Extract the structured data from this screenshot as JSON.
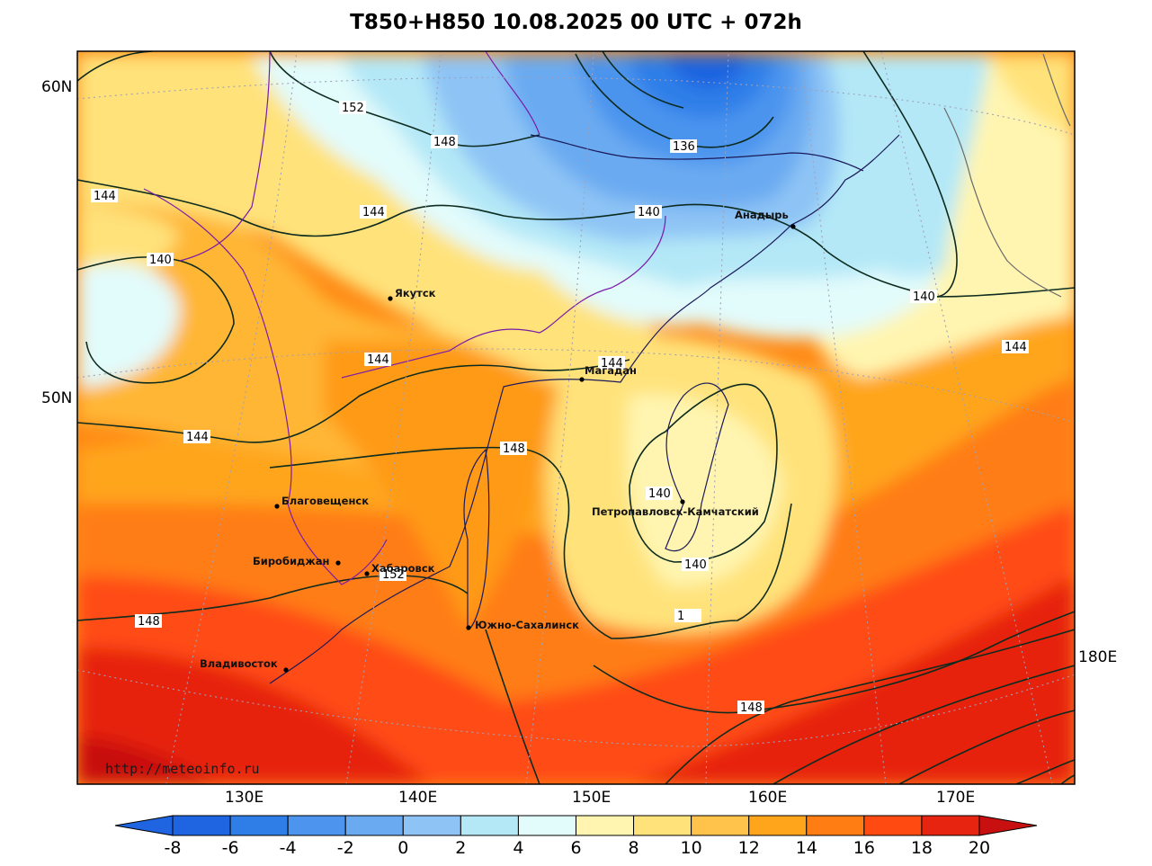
{
  "title": "T850+H850 10.08.2025 00 UTC + 072h",
  "credit": "http://meteoinfo.ru",
  "lat_labels": [
    "60N",
    "50N"
  ],
  "lon_labels": [
    "130E",
    "140E",
    "150E",
    "160E",
    "170E",
    "180E"
  ],
  "cities": [
    {
      "name": "Якутск"
    },
    {
      "name": "Магадан"
    },
    {
      "name": "Анадырь"
    },
    {
      "name": "Благовещенск"
    },
    {
      "name": "Биробиджан"
    },
    {
      "name": "Хабаровск"
    },
    {
      "name": "Владивосток"
    },
    {
      "name": "Южно-Сахалинск"
    },
    {
      "name": "Петропавловск-Камчатский"
    }
  ],
  "contour_labels": [
    "152",
    "148",
    "136",
    "144",
    "140",
    "140",
    "140",
    "144",
    "144",
    "144",
    "148",
    "140",
    "140",
    "144",
    "144",
    "148",
    "148",
    "152",
    "1"
  ],
  "colorbar": {
    "ticks": [
      "-8",
      "-6",
      "-4",
      "-2",
      "0",
      "2",
      "4",
      "6",
      "8",
      "10",
      "12",
      "14",
      "16",
      "18",
      "20"
    ],
    "colors": [
      "#1f64e0",
      "#2f7ee8",
      "#4c94ee",
      "#6aaaf1",
      "#8ec4f5",
      "#b4e8f7",
      "#e2fbfb",
      "#fff5b0",
      "#ffe27a",
      "#ffc24a",
      "#ffa51c",
      "#ff7d12",
      "#ff4b12",
      "#e62410"
    ],
    "low_color": "#1f64e0",
    "high_color": "#c81010"
  }
}
